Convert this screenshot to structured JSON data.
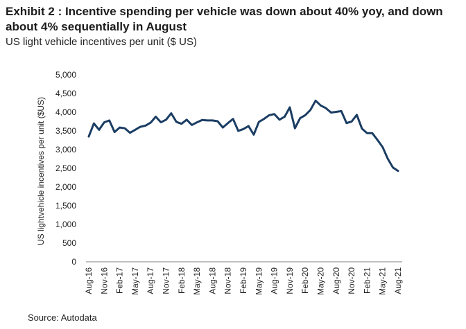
{
  "title": "Exhibit 2 : Incentive spending per vehicle was down about 40% yoy, and down about 4% sequentially in August",
  "subtitle": "US light vehicle incentives per unit ($ US)",
  "source": "Source: Autodata",
  "colors": {
    "line": "#1b3d63",
    "text": "#1c1c1c"
  },
  "chart_data": {
    "type": "line",
    "ylabel": "US lightvehicle incentives per unit ($US)",
    "ylim": [
      0,
      5000
    ],
    "yticks": [
      0,
      500,
      1000,
      1500,
      2000,
      2500,
      3000,
      3500,
      4000,
      4500,
      5000
    ],
    "ytick_labels": [
      "0",
      "500",
      "1,000",
      "1,500",
      "2,000",
      "2,500",
      "3,000",
      "3,500",
      "4,000",
      "4,500",
      "5,000"
    ],
    "xtick_labels": [
      "Aug-16",
      "Nov-16",
      "Feb-17",
      "May-17",
      "Aug-17",
      "Nov-17",
      "Feb-18",
      "May-18",
      "Aug-18",
      "Nov-18",
      "Feb-19",
      "May-19",
      "Aug-19",
      "Nov-19",
      "Feb-20",
      "May-20",
      "Aug-20",
      "Nov-20",
      "Feb-21",
      "May-21",
      "Aug-21"
    ],
    "grid": false,
    "series": [
      {
        "x": [
          "Aug-16",
          "Sep-16",
          "Oct-16",
          "Nov-16",
          "Dec-16",
          "Jan-17",
          "Feb-17",
          "Mar-17",
          "Apr-17",
          "May-17",
          "Jun-17",
          "Jul-17",
          "Aug-17",
          "Sep-17",
          "Oct-17",
          "Nov-17",
          "Dec-17",
          "Jan-18",
          "Feb-18",
          "Mar-18",
          "Apr-18",
          "May-18",
          "Jun-18",
          "Jul-18",
          "Aug-18",
          "Sep-18",
          "Oct-18",
          "Nov-18",
          "Dec-18",
          "Jan-19",
          "Feb-19",
          "Mar-19",
          "Apr-19",
          "May-19",
          "Jun-19",
          "Jul-19",
          "Aug-19",
          "Sep-19",
          "Oct-19",
          "Nov-19",
          "Dec-19",
          "Jan-20",
          "Feb-20",
          "Mar-20",
          "Apr-20",
          "May-20",
          "Jun-20",
          "Jul-20",
          "Aug-20",
          "Sep-20",
          "Oct-20",
          "Nov-20",
          "Dec-20",
          "Jan-21",
          "Feb-21",
          "Mar-21",
          "Apr-21",
          "May-21",
          "Jun-21",
          "Jul-21",
          "Aug-21"
        ],
        "values": [
          3350,
          3700,
          3530,
          3730,
          3780,
          3470,
          3590,
          3570,
          3450,
          3530,
          3610,
          3640,
          3720,
          3880,
          3730,
          3800,
          3970,
          3740,
          3690,
          3800,
          3660,
          3730,
          3790,
          3780,
          3780,
          3760,
          3590,
          3710,
          3820,
          3500,
          3550,
          3630,
          3400,
          3740,
          3820,
          3920,
          3950,
          3800,
          3880,
          4130,
          3570,
          3840,
          3920,
          4060,
          4310,
          4180,
          4110,
          3990,
          4010,
          4030,
          3710,
          3750,
          3930,
          3560,
          3440,
          3440,
          3260,
          3070,
          2760,
          2520,
          2430
        ]
      }
    ]
  }
}
